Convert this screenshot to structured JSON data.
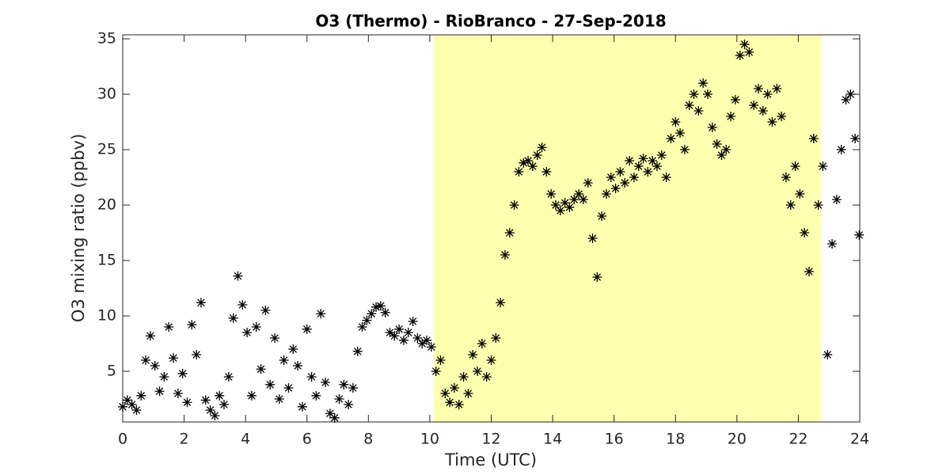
{
  "chart_data": {
    "type": "scatter",
    "title": "O3 (Thermo) - RioBranco - 27-Sep-2018",
    "x_label": "Time (UTC)",
    "y_label": "O3 mixing ratio (ppbv)",
    "xlim": [
      0,
      24
    ],
    "ylim": [
      0.43,
      35.36
    ],
    "xticks": [
      0,
      2,
      4,
      6,
      8,
      10,
      12,
      14,
      16,
      18,
      20,
      22,
      24
    ],
    "yticks": [
      5,
      10,
      15,
      20,
      25,
      30,
      35
    ],
    "highlight_span": [
      10.13,
      22.74
    ],
    "highlight_color": "#ffffb0",
    "color": "#000000",
    "marker": "asterisk",
    "x": [
      0,
      0.15,
      0.3,
      0.45,
      0.6,
      0.75,
      0.9,
      1.05,
      1.2,
      1.35,
      1.5,
      1.65,
      1.8,
      1.95,
      2.1,
      2.25,
      2.4,
      2.55,
      2.7,
      2.85,
      3,
      3.15,
      3.3,
      3.45,
      3.6,
      3.75,
      3.9,
      4.05,
      4.2,
      4.35,
      4.5,
      4.65,
      4.8,
      4.95,
      5.1,
      5.25,
      5.4,
      5.55,
      5.7,
      5.85,
      6,
      6.15,
      6.3,
      6.45,
      6.6,
      6.75,
      6.9,
      7.05,
      7.2,
      7.35,
      7.5,
      7.65,
      7.8,
      7.95,
      8.1,
      8.25,
      8.4,
      8.55,
      8.7,
      8.85,
      9,
      9.15,
      9.3,
      9.45,
      9.6,
      9.75,
      9.9,
      10.05,
      10.2,
      10.35,
      10.5,
      10.65,
      10.8,
      10.95,
      11.1,
      11.25,
      11.4,
      11.55,
      11.7,
      11.85,
      12,
      12.15,
      12.3,
      12.45,
      12.6,
      12.75,
      12.9,
      13.05,
      13.2,
      13.35,
      13.5,
      13.65,
      13.8,
      13.95,
      14.1,
      14.25,
      14.4,
      14.55,
      14.7,
      14.85,
      15,
      15.15,
      15.3,
      15.45,
      15.6,
      15.75,
      15.9,
      16.05,
      16.2,
      16.35,
      16.5,
      16.65,
      16.8,
      16.95,
      17.1,
      17.25,
      17.4,
      17.55,
      17.7,
      17.85,
      18,
      18.15,
      18.3,
      18.45,
      18.6,
      18.75,
      18.9,
      19.05,
      19.2,
      19.35,
      19.5,
      19.65,
      19.8,
      19.95,
      20.1,
      20.25,
      20.4,
      20.55,
      20.7,
      20.85,
      21,
      21.15,
      21.3,
      21.45,
      21.6,
      21.75,
      21.9,
      22.05,
      22.2,
      22.35,
      22.5,
      22.65,
      22.8,
      22.95,
      23.1,
      23.25,
      23.4,
      23.55,
      23.7,
      23.85,
      23.98
    ],
    "values": [
      1.8,
      2.4,
      2,
      1.5,
      2.8,
      6,
      8.2,
      5.5,
      3.2,
      4.5,
      9,
      6.2,
      3,
      4.8,
      2.2,
      9.2,
      6.5,
      11.2,
      2.4,
      1.5,
      1,
      2.8,
      2,
      4.5,
      9.8,
      13.6,
      11,
      8.5,
      2.8,
      9,
      5.2,
      10.5,
      3.8,
      8,
      2.5,
      6,
      3.5,
      7,
      5.5,
      1.8,
      8.8,
      4.5,
      2.8,
      10.2,
      4,
      1.2,
      0.8,
      2.5,
      3.8,
      2,
      3.5,
      6.8,
      9,
      9.6,
      10.2,
      10.8,
      10.9,
      10.3,
      8.5,
      8.2,
      8.8,
      7.8,
      8.5,
      9.5,
      8,
      7.5,
      7.8,
      7.2,
      5,
      6,
      3,
      2.2,
      3.5,
      2,
      4.5,
      3,
      6.5,
      5,
      7.5,
      4.5,
      6,
      8,
      11.2,
      15.5,
      17.5,
      20,
      23,
      23.8,
      24,
      23.5,
      24.5,
      25.2,
      23,
      21,
      20,
      19.5,
      20.2,
      19.8,
      20.5,
      21,
      20.5,
      22,
      17,
      13.5,
      19,
      21,
      22.5,
      21.5,
      23,
      22,
      24,
      22.5,
      23.5,
      24.2,
      23,
      24,
      23.5,
      24.5,
      22.5,
      26,
      27.5,
      26.5,
      25,
      29,
      30,
      28.5,
      31,
      30,
      27,
      25.5,
      24.5,
      25,
      28,
      29.5,
      33.5,
      34.5,
      33.8,
      29,
      30.5,
      28.5,
      30,
      27.5,
      30.5,
      28,
      22.5,
      20,
      23.5,
      21,
      17.5,
      14,
      26,
      20,
      23.5,
      6.5,
      16.5,
      20.5,
      25,
      29.5,
      30,
      26,
      17.3
    ]
  }
}
